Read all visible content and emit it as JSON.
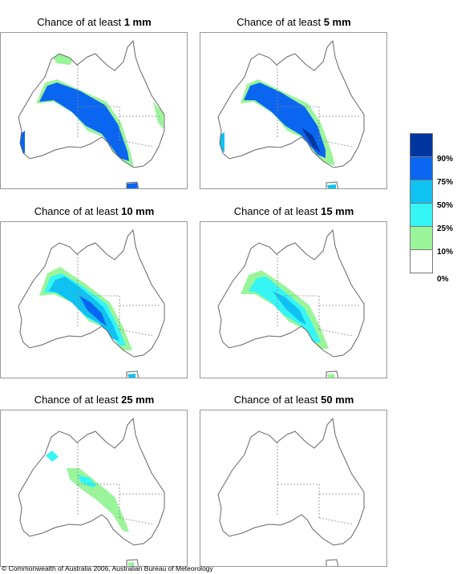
{
  "title_prefix": "Chance of at least",
  "panels": [
    {
      "amount": "1 mm",
      "level": 1
    },
    {
      "amount": "5 mm",
      "level": 2
    },
    {
      "amount": "10 mm",
      "level": 3
    },
    {
      "amount": "15 mm",
      "level": 4
    },
    {
      "amount": "25 mm",
      "level": 5
    },
    {
      "amount": "50 mm",
      "level": 6
    }
  ],
  "legend": {
    "colors": [
      "#00369e",
      "#0a66f0",
      "#10c2f2",
      "#36f5f5",
      "#9af59a",
      "#ffffff"
    ],
    "labels": [
      "90%",
      "75%",
      "50%",
      "25%",
      "10%",
      "0%"
    ]
  },
  "copyright": "© Commonwealth of Australia 2006, Australian Bureau of Meteorology"
}
